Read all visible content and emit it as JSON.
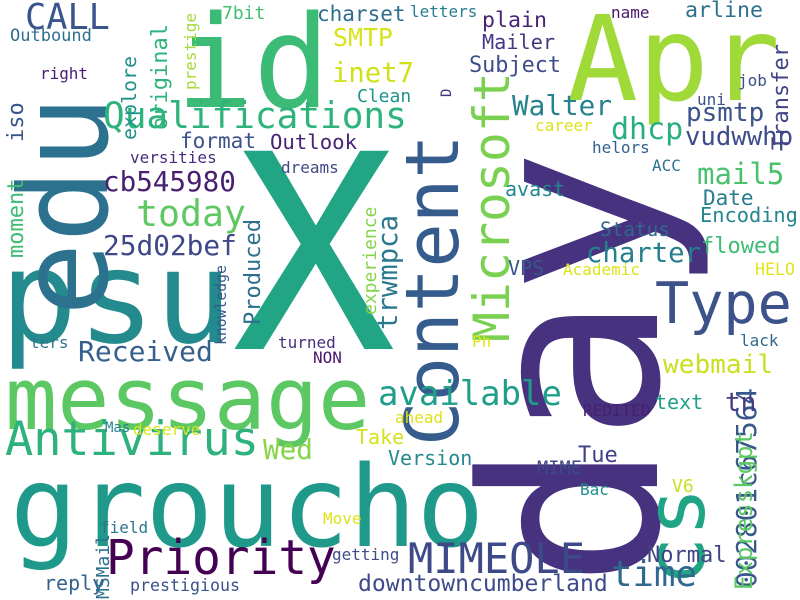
{
  "words": [
    {
      "text": "X",
      "color": "#21a585",
      "vertical": false
    },
    {
      "text": "day",
      "color": "#46327e",
      "vertical": true
    },
    {
      "text": "Apr",
      "color": "#a0da39",
      "vertical": false
    },
    {
      "text": "id",
      "color": "#3bbb75",
      "vertical": false
    },
    {
      "text": "psu",
      "color": "#238a8d",
      "vertical": false
    },
    {
      "text": "groucho",
      "color": "#1f9a8a",
      "vertical": false
    },
    {
      "text": "edu",
      "color": "#2c728e",
      "vertical": true
    },
    {
      "text": "message",
      "color": "#5cc863",
      "vertical": false
    },
    {
      "text": "Content",
      "color": "#365c8d",
      "vertical": true
    },
    {
      "text": "cs",
      "color": "#20a486",
      "vertical": true
    },
    {
      "text": "Type",
      "color": "#3b528b",
      "vertical": false
    },
    {
      "text": "Microsoft",
      "color": "#7ad151",
      "vertical": true
    },
    {
      "text": "Qualifications",
      "color": "#2eb37c",
      "vertical": false
    },
    {
      "text": "Antivirus",
      "color": "#2db27d",
      "vertical": false
    },
    {
      "text": "Priority",
      "color": "#440154",
      "vertical": false
    },
    {
      "text": "MIMEOLE",
      "color": "#3e4989",
      "vertical": false
    },
    {
      "text": "available",
      "color": "#1f9e89",
      "vertical": false
    },
    {
      "text": "time",
      "color": "#31688e",
      "vertical": false
    },
    {
      "text": "today",
      "color": "#5ec962",
      "vertical": false
    },
    {
      "text": "CALL",
      "color": "#3a548c",
      "vertical": false
    },
    {
      "text": "cb545980",
      "color": "#481f70",
      "vertical": false
    },
    {
      "text": "25d02bef",
      "color": "#3f4788",
      "vertical": false
    },
    {
      "text": "Received",
      "color": "#35608d",
      "vertical": false
    },
    {
      "text": "Walter",
      "color": "#26828e",
      "vertical": false
    },
    {
      "text": "trwmpca",
      "color": "#2a788e",
      "vertical": true
    },
    {
      "text": "002801c67564",
      "color": "#38588c",
      "vertical": true
    },
    {
      "text": "webmail",
      "color": "#c8e020",
      "vertical": false
    },
    {
      "text": "downtowncumberland",
      "color": "#3e4a89",
      "vertical": false
    },
    {
      "text": "Expresskgpt",
      "color": "#5ac864",
      "vertical": true
    },
    {
      "text": "charter",
      "color": "#277f8e",
      "vertical": false
    },
    {
      "text": "HELO",
      "color": "#e5e419",
      "vertical": false
    },
    {
      "text": "dhcp",
      "color": "#29af7f",
      "vertical": false
    },
    {
      "text": "inet7",
      "color": "#d0e11c",
      "vertical": false
    },
    {
      "text": "SMTP",
      "color": "#d8e219",
      "vertical": false
    },
    {
      "text": "mail5",
      "color": "#4ac16d",
      "vertical": false
    },
    {
      "text": "vudwwhp",
      "color": "#3d4d8a",
      "vertical": false
    },
    {
      "text": "psmtp",
      "color": "#3b528b",
      "vertical": false
    },
    {
      "text": "Wed",
      "color": "#86d549",
      "vertical": false
    },
    {
      "text": "tn",
      "color": "#443a83",
      "vertical": false
    },
    {
      "text": "plain",
      "color": "#482475",
      "vertical": false
    },
    {
      "text": "Subject",
      "color": "#3e4c8a",
      "vertical": false
    },
    {
      "text": "arline",
      "color": "#2d718e",
      "vertical": false
    },
    {
      "text": "Mailer",
      "color": "#453781",
      "vertical": false
    },
    {
      "text": "charset",
      "color": "#2e6e8e",
      "vertical": false
    },
    {
      "text": "Outbound",
      "color": "#2e6f8e",
      "vertical": false
    },
    {
      "text": "explore",
      "color": "#21918c",
      "vertical": true
    },
    {
      "text": "original",
      "color": "#2fb47c",
      "vertical": true
    },
    {
      "text": "format",
      "color": "#3b528b",
      "vertical": false
    },
    {
      "text": "Outlook",
      "color": "#482374",
      "vertical": false
    },
    {
      "text": "Date",
      "color": "#287c8e",
      "vertical": false
    },
    {
      "text": "Encoding",
      "color": "#25858e",
      "vertical": false
    },
    {
      "text": "flowed",
      "color": "#3dbc74",
      "vertical": false
    },
    {
      "text": "Status",
      "color": "#31688e",
      "vertical": false
    },
    {
      "text": "Academic",
      "color": "#dde318",
      "vertical": false
    },
    {
      "text": "VPS",
      "color": "#39568c",
      "vertical": false
    },
    {
      "text": "Version",
      "color": "#238a8d",
      "vertical": false
    },
    {
      "text": "Take",
      "color": "#d2e21b",
      "vertical": false
    },
    {
      "text": "MIME",
      "color": "#3e4989",
      "vertical": false
    },
    {
      "text": "Tue",
      "color": "#424086",
      "vertical": false
    },
    {
      "text": "Normal",
      "color": "#414487",
      "vertical": false
    },
    {
      "text": "reply",
      "color": "#33638d",
      "vertical": false
    },
    {
      "text": "Produced",
      "color": "#2d708e",
      "vertical": true
    },
    {
      "text": "text",
      "color": "#1fa088",
      "vertical": false
    },
    {
      "text": "avast",
      "color": "#23898e",
      "vertical": false
    },
    {
      "text": "Transfer",
      "color": "#414487",
      "vertical": true
    },
    {
      "text": "iso",
      "color": "#39568c",
      "vertical": true
    },
    {
      "text": "moment",
      "color": "#40bd72",
      "vertical": true
    },
    {
      "text": "Clean",
      "color": "#20938c",
      "vertical": false
    },
    {
      "text": "versities",
      "color": "#472d7b",
      "vertical": false
    },
    {
      "text": "dreams",
      "color": "#3e4989",
      "vertical": false
    },
    {
      "text": "turned",
      "color": "#46307e",
      "vertical": false
    },
    {
      "text": "NON",
      "color": "#48186a",
      "vertical": false
    },
    {
      "text": "7bit",
      "color": "#44bf70",
      "vertical": false
    },
    {
      "text": "letters",
      "color": "#277f8e",
      "vertical": false
    },
    {
      "text": "name",
      "color": "#481769",
      "vertical": false
    },
    {
      "text": "right",
      "color": "#481f70",
      "vertical": false
    },
    {
      "text": "job",
      "color": "#3c4f8a",
      "vertical": false
    },
    {
      "text": "uni",
      "color": "#3b528b",
      "vertical": false
    },
    {
      "text": "helors",
      "color": "#34608d",
      "vertical": false
    },
    {
      "text": "ACC",
      "color": "#2c738e",
      "vertical": false
    },
    {
      "text": "career",
      "color": "#dde318",
      "vertical": false
    },
    {
      "text": "REDITED",
      "color": "#481f70",
      "vertical": false
    },
    {
      "text": "lack",
      "color": "#31688e",
      "vertical": false
    },
    {
      "text": "Ph",
      "color": "#dde318",
      "vertical": false
    },
    {
      "text": "experience",
      "color": "#84d44b",
      "vertical": true
    },
    {
      "text": "knowledge",
      "color": "#38598c",
      "vertical": true
    },
    {
      "text": "ahead",
      "color": "#dde318",
      "vertical": false
    },
    {
      "text": "ters",
      "color": "#2a778e",
      "vertical": false
    },
    {
      "text": "Mas",
      "color": "#26828e",
      "vertical": false
    },
    {
      "text": "deserve",
      "color": "#dde318",
      "vertical": false
    },
    {
      "text": "field",
      "color": "#2a768e",
      "vertical": false
    },
    {
      "text": "MSMail",
      "color": "#2c728e",
      "vertical": true
    },
    {
      "text": "Move",
      "color": "#dde318",
      "vertical": false
    },
    {
      "text": "getting",
      "color": "#3e4c8a",
      "vertical": false
    },
    {
      "text": "prestigious",
      "color": "#3b528b",
      "vertical": false
    },
    {
      "text": "prestige",
      "color": "#a2da37",
      "vertical": true
    },
    {
      "text": "Bac",
      "color": "#21908d",
      "vertical": false
    },
    {
      "text": "V6",
      "color": "#c8e020",
      "vertical": false
    },
    {
      "text": "D",
      "color": "#46327e",
      "vertical": true
    }
  ]
}
